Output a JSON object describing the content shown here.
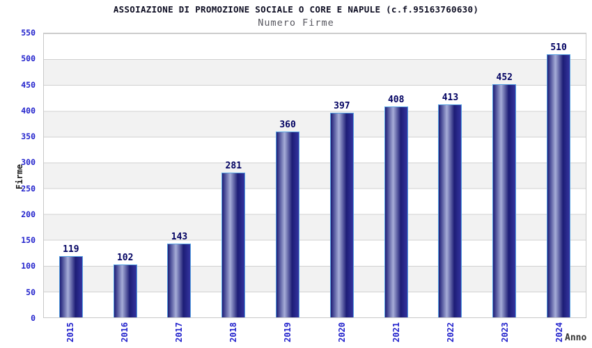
{
  "chart_data": {
    "type": "bar",
    "title": "ASSOIAZIONE DI PROMOZIONE SOCIALE O CORE E NAPULE (c.f.95163760630)",
    "subtitle": "Numero Firme",
    "xlabel": "Anno",
    "ylabel": "Firme",
    "categories": [
      "2015",
      "2016",
      "2017",
      "2018",
      "2019",
      "2020",
      "2021",
      "2022",
      "2023",
      "2024"
    ],
    "values": [
      119,
      102,
      143,
      281,
      360,
      397,
      408,
      413,
      452,
      510
    ],
    "ylim": [
      0,
      550
    ],
    "ytick_step": 50,
    "yticks": [
      550,
      500,
      450,
      400,
      350,
      300,
      250,
      200,
      150,
      100,
      50,
      0
    ],
    "grid": true,
    "legend_position": "none",
    "colors": {
      "bar_dark": "#1d1d76",
      "bar_light": "#a6add8",
      "bar_right": "#34349f",
      "bar_border": "#55a2e3",
      "tick_label": "#2222cc",
      "value_label": "#000061",
      "band_gray": "#f2f2f2",
      "gridline": "#d0d0d0",
      "plot_border": "#c8c8c8"
    }
  }
}
